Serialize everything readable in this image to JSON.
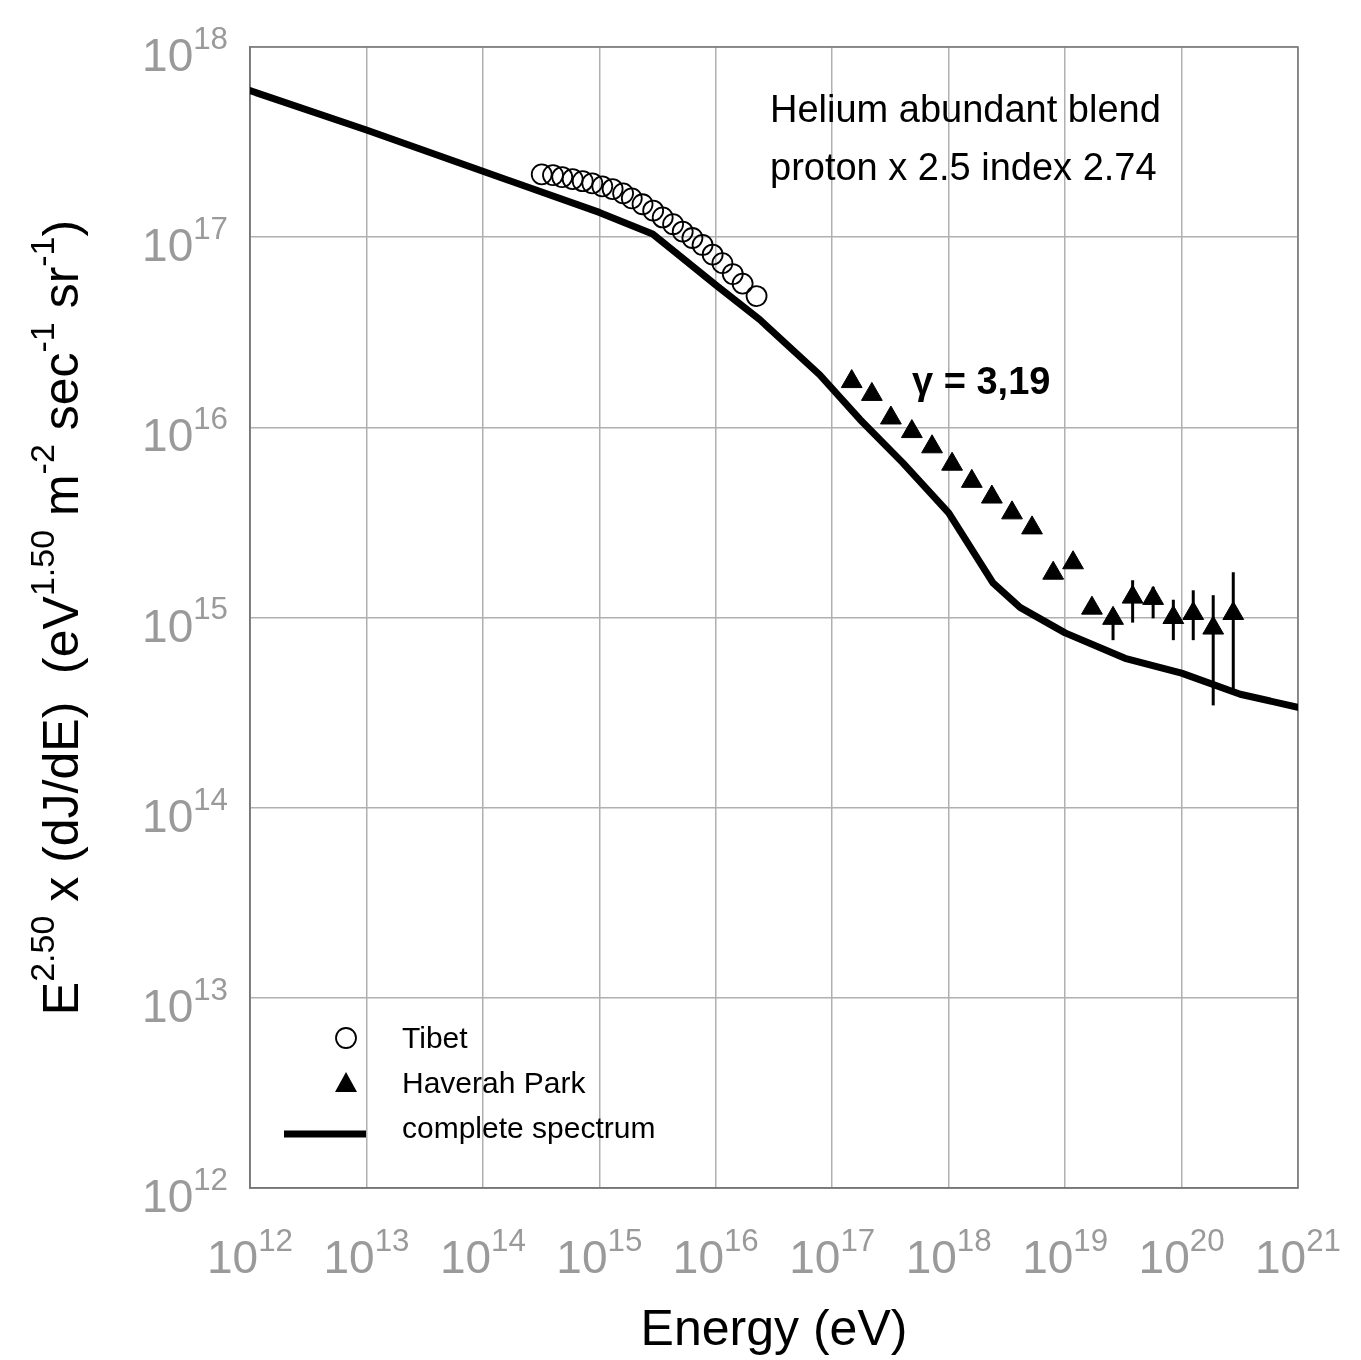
{
  "chart_data": {
    "type": "scatter",
    "xlabel": "Energy (eV)",
    "ylabel": "E$^{2.50}$ x (dJ/dE)  (eV$^{1.50}$ m$^{-2}$ sec$^{-1}$ sr$^{-1}$)",
    "log": "xy",
    "grid": true,
    "legend": "bottom left",
    "xlim": [
      1000000000000.0,
      1e+21
    ],
    "ylim": [
      1000000000000.0,
      1e+18
    ],
    "xticks": [
      {
        "value": 1000000000000.0,
        "label": "10$^{12}$"
      },
      {
        "value": 10000000000000.0,
        "label": "10$^{13}$"
      },
      {
        "value": 100000000000000.0,
        "label": "10$^{14}$"
      },
      {
        "value": 1000000000000000.0,
        "label": "10$^{15}$"
      },
      {
        "value": 1e+16,
        "label": "10$^{16}$"
      },
      {
        "value": 1e+17,
        "label": "10$^{17}$"
      },
      {
        "value": 1e+18,
        "label": "10$^{18}$"
      },
      {
        "value": 1e+19,
        "label": "10$^{19}$"
      },
      {
        "value": 1e+20,
        "label": "10$^{20}$"
      },
      {
        "value": 1e+21,
        "label": "10$^{21}$"
      }
    ],
    "yticks": [
      {
        "value": 1000000000000.0,
        "label": "10$^{12}$"
      },
      {
        "value": 10000000000000.0,
        "label": "10$^{13}$"
      },
      {
        "value": 100000000000000.0,
        "label": "10$^{14}$"
      },
      {
        "value": 1000000000000000.0,
        "label": "10$^{15}$"
      },
      {
        "value": 1e+16,
        "label": "10$^{16}$"
      },
      {
        "value": 1e+17,
        "label": "10$^{17}$"
      },
      {
        "value": 1e+18,
        "label": "10$^{18}$"
      }
    ],
    "annotations": [
      "Helium abundant blend",
      "proton x 2.5 index 2.74",
      "γ = 3,19"
    ],
    "series": [
      {
        "name": "Tibet",
        "type": "scatter",
        "marker": "circle",
        "color": "#000000",
        "x": [
          320000000000000.0,
          400000000000000.0,
          480000000000000.0,
          590000000000000.0,
          720000000000000.0,
          870000000000000.0,
          1060000000000000.0,
          1300000000000000.0,
          1600000000000000.0,
          1900000000000000.0,
          2350000000000000.0,
          2900000000000000.0,
          3500000000000000.0,
          4300000000000000.0,
          5200000000000000.0,
          6300000000000000.0,
          7700000000000000.0,
          9400000000000000.0,
          1.14e+16,
          1.4e+16,
          1.7e+16,
          2.24e+16
        ],
        "values": [
          2.14e+17,
          2.12e+17,
          2.07e+17,
          2.02e+17,
          1.97e+17,
          1.92e+17,
          1.85e+17,
          1.79e+17,
          1.7e+17,
          1.6e+17,
          1.49e+17,
          1.38e+17,
          1.27e+17,
          1.17e+17,
          1.07e+17,
          9.9e+16,
          9.1e+16,
          8.1e+16,
          7.3e+16,
          6.4e+16,
          5.7e+16,
          4.9e+16
        ]
      },
      {
        "name": "Haverah Park",
        "type": "scatter",
        "marker": "triangle",
        "color": "#000000",
        "x": [
          1.47e+17,
          2.19e+17,
          3.19e+17,
          4.83e+17,
          7.2e+17,
          1.07e+18,
          1.58e+18,
          2.35e+18,
          3.5e+18,
          5.2e+18,
          7.9e+18,
          1.17e+19,
          1.7e+19,
          2.58e+19,
          3.8e+19,
          5.7e+19,
          8.5e+19,
          1.26e+20,
          1.87e+20,
          2.78e+20
        ],
        "values": [
          1.74e+16,
          1.49e+16,
          1.12e+16,
          9500000000000000.0,
          7900000000000000.0,
          6400000000000000.0,
          5200000000000000.0,
          4300000000000000.0,
          3550000000000000.0,
          2960000000000000.0,
          1710000000000000.0,
          1940000000000000.0,
          1120000000000000.0,
          990000000000000.0,
          1280000000000000.0,
          1260000000000000.0,
          1000000000000000.0,
          1050000000000000.0,
          880000000000000.0,
          1050000000000000.0
        ],
        "errors": [
          null,
          null,
          null,
          null,
          null,
          null,
          null,
          null,
          null,
          null,
          null,
          null,
          null,
          [
            760000000000000.0,
            990000000000000.0
          ],
          [
            940000000000000.0,
            1570000000000000.0
          ],
          [
            990000000000000.0,
            1450000000000000.0
          ],
          [
            760000000000000.0,
            1240000000000000.0
          ],
          [
            760000000000000.0,
            1390000000000000.0
          ],
          [
            345000000000000.0,
            1310000000000000.0
          ],
          [
            410000000000000.0,
            1730000000000000.0
          ]
        ]
      },
      {
        "name": "complete spectrum",
        "type": "line",
        "marker": "none",
        "line_style": "solid",
        "color": "#000000",
        "x": [
          1000000000000.0,
          10000000000000.0,
          100000000000000.0,
          1000000000000000.0,
          2870000000000000.0,
          1e+16,
          2.38e+16,
          7.8e+16,
          1.73e+17,
          4.04e+17,
          1e+18,
          2.4e+18,
          4.1e+18,
          1e+19,
          3.27e+19,
          1e+20,
          3.19e+20,
          1e+21
        ],
        "values": [
          5.9e+17,
          3.66e+17,
          2.22e+17,
          1.35e+17,
          1.04e+17,
          5.6e+16,
          3.69e+16,
          1.89e+16,
          1.1e+16,
          6500000000000000.0,
          3550000000000000.0,
          1520000000000000.0,
          1130000000000000.0,
          830000000000000.0,
          610000000000000.0,
          510000000000000.0,
          395000000000000.0,
          337000000000000.0
        ]
      }
    ]
  }
}
